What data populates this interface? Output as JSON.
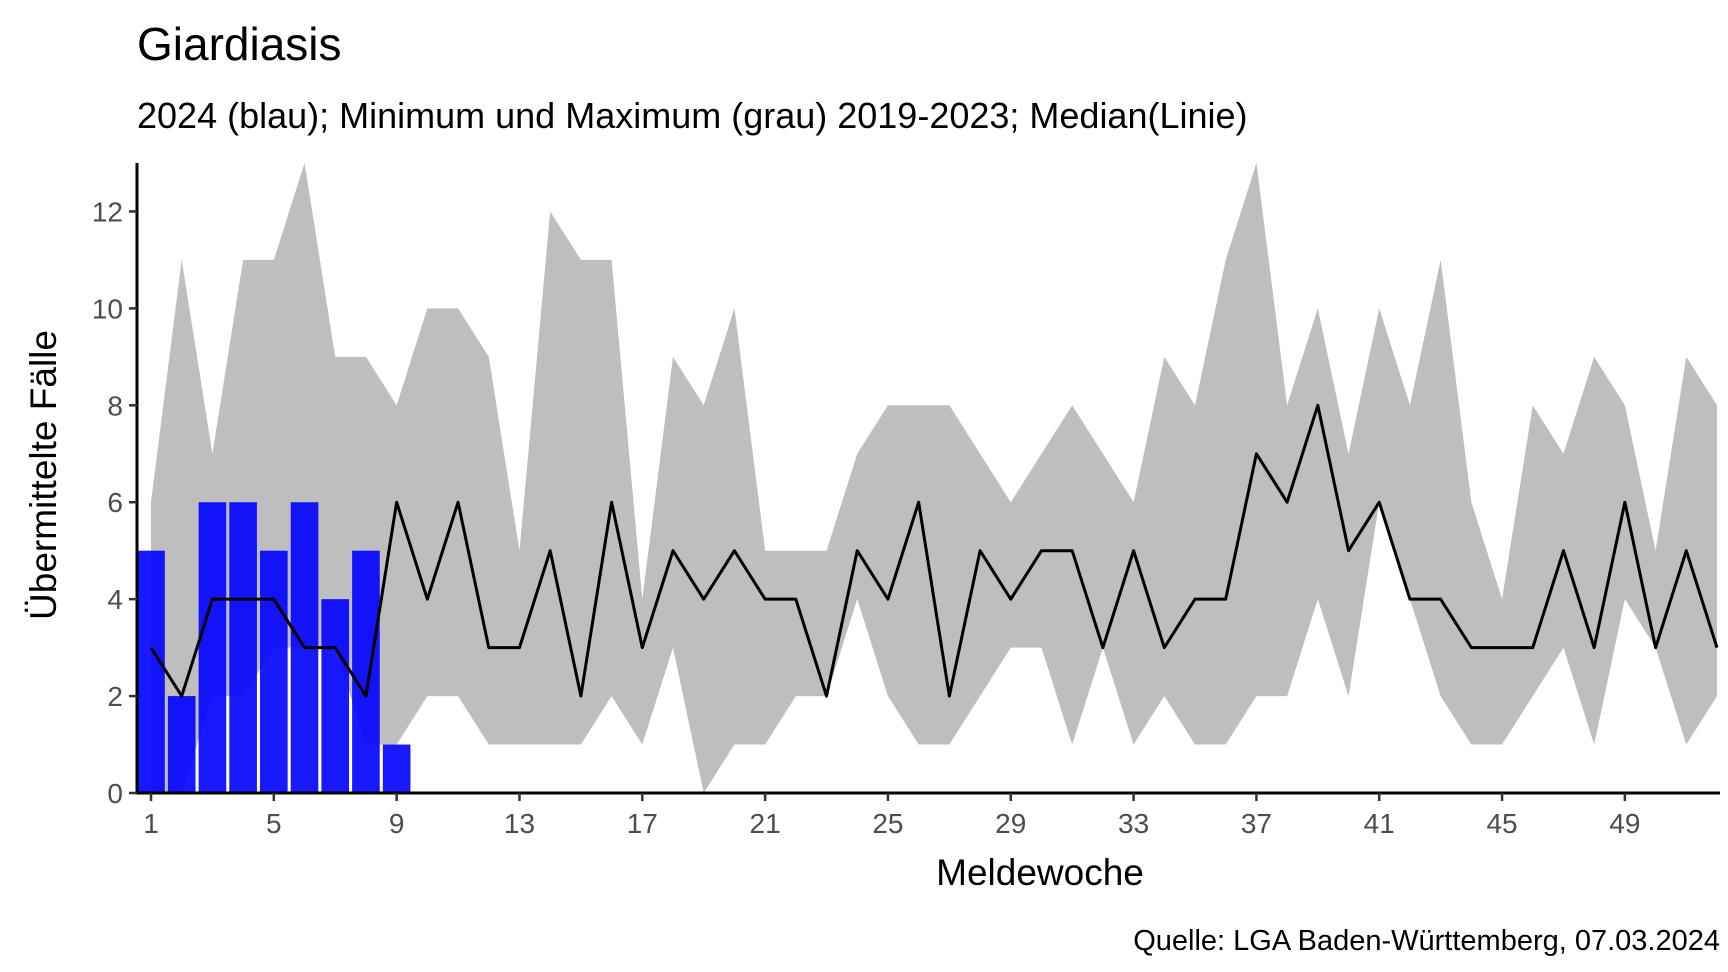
{
  "chart_data": {
    "type": "bar",
    "title": "Giardiasis",
    "subtitle": "2024 (blau); Minimum und Maximum (grau) 2019-2023; Median(Linie)",
    "xlabel": "Meldewoche",
    "ylabel": "Übermittelte Fälle",
    "caption": "Quelle: LGA Baden-Württemberg, 07.03.2024",
    "xlim": [
      0.6,
      52
    ],
    "ylim": [
      0,
      13
    ],
    "x_ticks": [
      1,
      5,
      9,
      13,
      17,
      21,
      25,
      29,
      33,
      37,
      41,
      45,
      49
    ],
    "y_ticks": [
      0,
      2,
      4,
      6,
      8,
      10,
      12
    ],
    "grid": false,
    "weeks": [
      1,
      2,
      3,
      4,
      5,
      6,
      7,
      8,
      9,
      10,
      11,
      12,
      13,
      14,
      15,
      16,
      17,
      18,
      19,
      20,
      21,
      22,
      23,
      24,
      25,
      26,
      27,
      28,
      29,
      30,
      31,
      32,
      33,
      34,
      35,
      36,
      37,
      38,
      39,
      40,
      41,
      42,
      43,
      44,
      45,
      46,
      47,
      48,
      49,
      50,
      51,
      52
    ],
    "series": [
      {
        "name": "2024",
        "kind": "bar",
        "color": "#0000ff",
        "x": [
          1,
          2,
          3,
          4,
          5,
          6,
          7,
          8,
          9
        ],
        "values": [
          5,
          2,
          6,
          6,
          5,
          6,
          4,
          5,
          1
        ]
      },
      {
        "name": "Minimum",
        "kind": "band-lower",
        "color": "#bebebe",
        "values": [
          0,
          0,
          2,
          2,
          3,
          3,
          3,
          1,
          1,
          2,
          2,
          1,
          1,
          1,
          1,
          2,
          1,
          3,
          0,
          1,
          1,
          2,
          2,
          4,
          2,
          1,
          1,
          2,
          3,
          3,
          1,
          3,
          1,
          2,
          1,
          1,
          2,
          2,
          4,
          2,
          6,
          4,
          2,
          1,
          1,
          2,
          3,
          1,
          4,
          3,
          1,
          2
        ]
      },
      {
        "name": "Maximum",
        "kind": "band-upper",
        "color": "#bebebe",
        "values": [
          6,
          11,
          7,
          11,
          11,
          13,
          9,
          9,
          8,
          10,
          10,
          9,
          5,
          12,
          11,
          11,
          4,
          9,
          8,
          10,
          5,
          5,
          5,
          7,
          8,
          8,
          8,
          7,
          6,
          7,
          8,
          7,
          6,
          9,
          8,
          11,
          13,
          8,
          10,
          7,
          10,
          8,
          11,
          6,
          4,
          8,
          7,
          9,
          8,
          5,
          9,
          8
        ]
      },
      {
        "name": "Median",
        "kind": "line",
        "color": "#000000",
        "values": [
          3,
          2,
          4,
          4,
          4,
          3,
          3,
          2,
          6,
          4,
          6,
          3,
          3,
          5,
          2,
          6,
          3,
          5,
          4,
          5,
          4,
          4,
          2,
          5,
          4,
          6,
          2,
          5,
          4,
          5,
          5,
          3,
          5,
          3,
          4,
          4,
          7,
          6,
          8,
          5,
          6,
          4,
          4,
          3,
          3,
          3,
          5,
          3,
          6,
          3,
          5,
          3
        ]
      }
    ]
  }
}
